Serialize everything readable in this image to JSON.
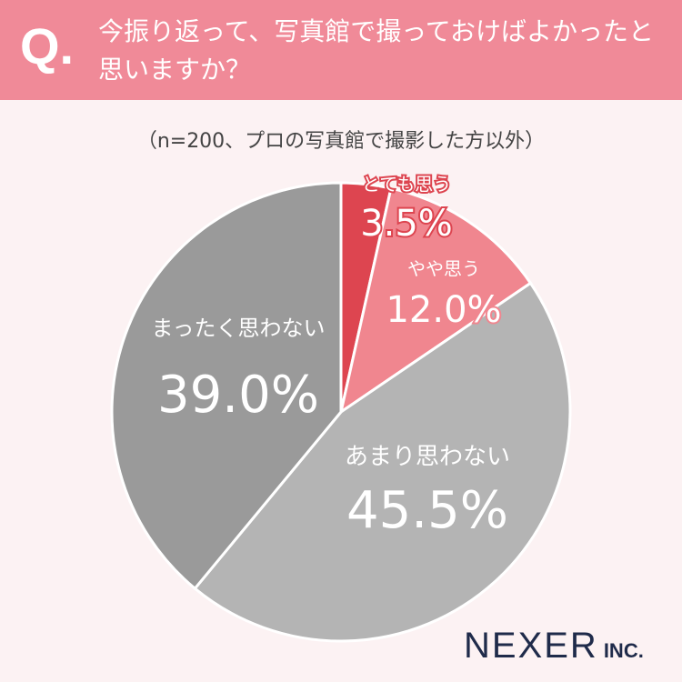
{
  "header": {
    "q": "Q.",
    "question": "今振り返って、写真館で撮っておけばよかったと思いますか？"
  },
  "brand": {
    "name": "NEXER",
    "suffix": "INC."
  },
  "chart_data": {
    "type": "pie",
    "subtitle": "（n=200、プロの写真館で撮影した方以外）",
    "categories": [
      "とても思う",
      "やや思う",
      "あまり思わない",
      "まったく思わない"
    ],
    "values": [
      3.5,
      12.0,
      45.5,
      39.0
    ],
    "value_labels": [
      "3.5%",
      "12.0%",
      "45.5%",
      "39.0%"
    ],
    "colors": [
      "#dd4550",
      "#f0868f",
      "#b4b4b4",
      "#9a9a9a"
    ]
  }
}
